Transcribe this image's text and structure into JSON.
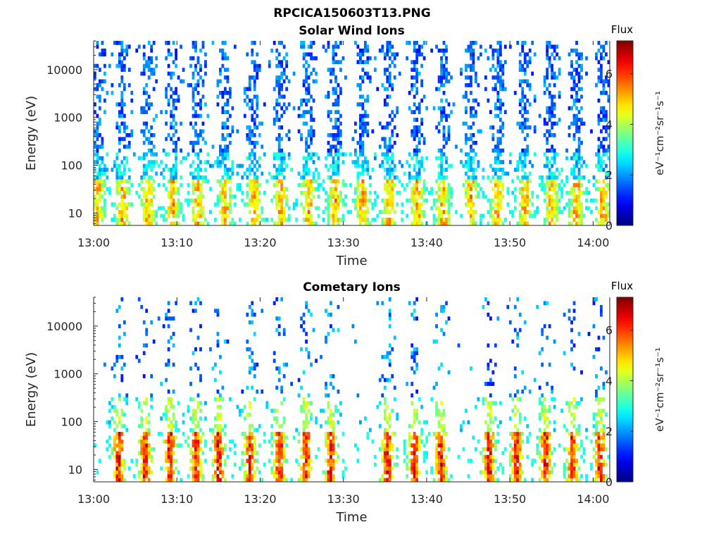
{
  "figure": {
    "file_title": "RPCICA150603T13.PNG"
  },
  "chart_data": [
    {
      "type": "heatmap",
      "title": "Solar Wind Ions",
      "xlabel": "Time",
      "ylabel": "Energy (eV)",
      "y_scale": "log",
      "ylim": [
        5.5,
        40000
      ],
      "xlim": [
        "13:00",
        "14:02"
      ],
      "x_ticks": [
        "13:00",
        "13:10",
        "13:20",
        "13:30",
        "13:40",
        "13:50",
        "14:00"
      ],
      "y_ticks": [
        "10",
        "100",
        "1000",
        "10000"
      ],
      "y_tick_values": [
        10,
        100,
        1000,
        10000
      ],
      "colorbar": {
        "title": "Flux",
        "label": "eV⁻¹cm⁻²sr⁻¹s⁻¹",
        "ticks": [
          "0",
          "2",
          "4",
          "6"
        ],
        "tick_values": [
          0,
          2,
          4,
          6
        ],
        "range": [
          0,
          7.3
        ],
        "colormap": "jet"
      },
      "bursts_minutes": [
        0.5,
        3.5,
        6.5,
        9.5,
        12.5,
        15.8,
        19.3,
        22.5,
        25.8,
        29.0,
        32.3,
        35.5,
        38.8,
        42.0,
        45.3,
        48.5,
        51.8,
        55.0,
        58.0,
        61.2
      ],
      "peak_flux": 5.5,
      "grid": false,
      "legend": "none"
    },
    {
      "type": "heatmap",
      "title": "Cometary Ions",
      "xlabel": "Time",
      "ylabel": "Energy (eV)",
      "y_scale": "log",
      "ylim": [
        5.5,
        40000
      ],
      "xlim": [
        "13:00",
        "14:02"
      ],
      "x_ticks": [
        "13:00",
        "13:10",
        "13:20",
        "13:30",
        "13:40",
        "13:50",
        "14:00"
      ],
      "y_ticks": [
        "10",
        "100",
        "1000",
        "10000"
      ],
      "y_tick_values": [
        10,
        100,
        1000,
        10000
      ],
      "colorbar": {
        "title": "Flux",
        "label": "eV⁻¹cm⁻²sr⁻¹s⁻¹",
        "ticks": [
          "0",
          "2",
          "4",
          "6"
        ],
        "tick_values": [
          0,
          2,
          4,
          6
        ],
        "range": [
          0,
          7.3
        ],
        "colormap": "jet"
      },
      "bursts_minutes": [
        3.0,
        6.2,
        9.2,
        12.3,
        15.0,
        18.8,
        22.3,
        25.5,
        28.5,
        35.3,
        38.5,
        41.7,
        47.5,
        50.8,
        54.3,
        57.5,
        60.8
      ],
      "peak_flux": 6.8,
      "grid": false,
      "legend": "none"
    }
  ]
}
